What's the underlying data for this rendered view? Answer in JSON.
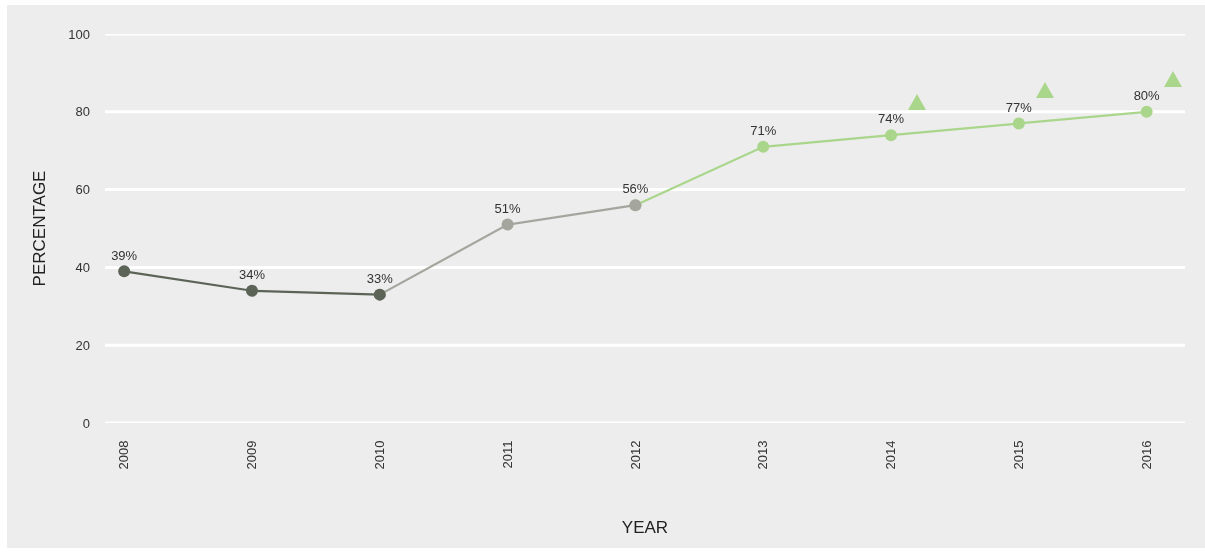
{
  "chart_data": {
    "type": "line",
    "xlabel": "YEAR",
    "ylabel": "PERCENTAGE",
    "categories": [
      "2008",
      "2009",
      "2010",
      "2011",
      "2012",
      "2013",
      "2014",
      "2015",
      "2016"
    ],
    "series": [
      {
        "color": "#5b6457",
        "values": [
          39,
          34,
          33,
          null,
          null,
          null,
          null,
          null,
          null
        ],
        "value_labels": [
          "39%",
          "34%",
          "33%",
          null,
          null,
          null,
          null,
          null,
          null
        ]
      },
      {
        "color": "#a4a69e",
        "values": [
          null,
          null,
          33,
          51,
          56,
          null,
          null,
          null,
          null
        ],
        "value_labels": [
          null,
          null,
          null,
          "51%",
          "56%",
          null,
          null,
          null,
          null
        ]
      },
      {
        "color": "#a9d68b",
        "values": [
          null,
          null,
          null,
          null,
          56,
          71,
          74,
          77,
          80
        ],
        "value_labels": [
          null,
          null,
          null,
          null,
          null,
          "71%",
          "74%",
          "77%",
          "80%"
        ]
      }
    ],
    "ylim": [
      0,
      100
    ],
    "yticks": [
      0,
      20,
      40,
      60,
      80,
      100
    ],
    "grid": "y",
    "marker": "circle",
    "line_style": "solid"
  }
}
